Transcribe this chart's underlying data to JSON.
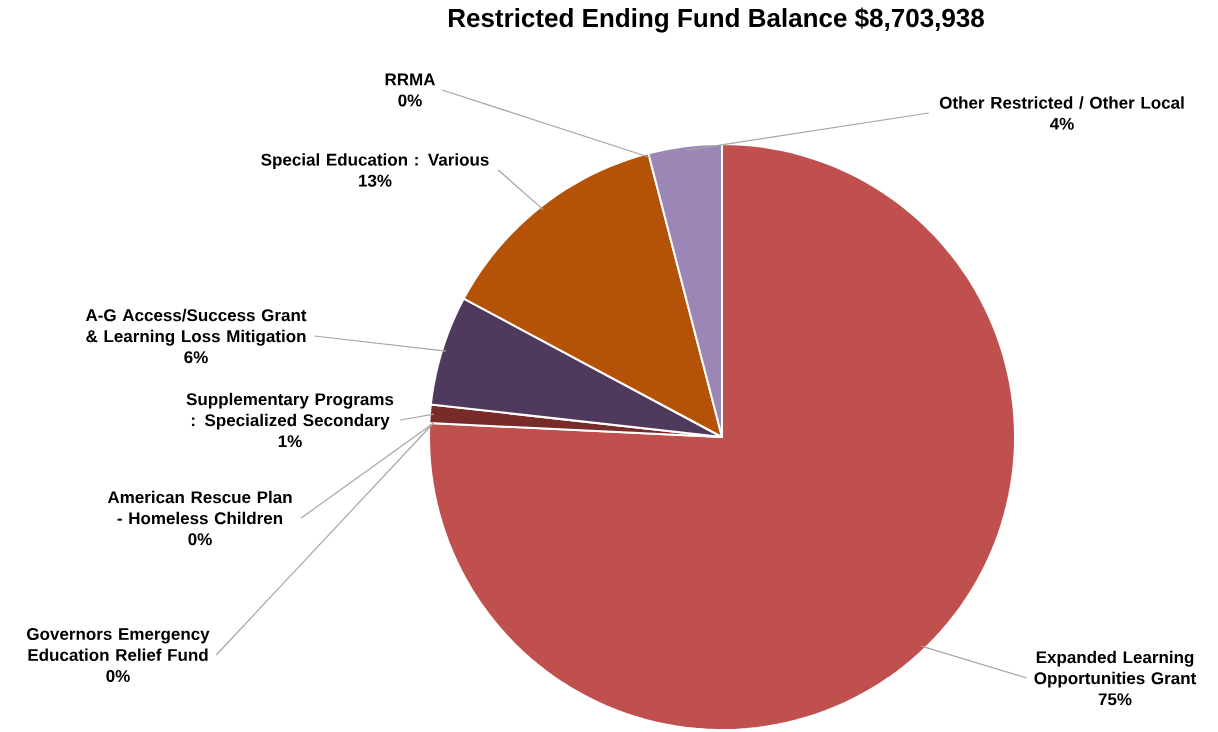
{
  "chart_data": {
    "type": "pie",
    "title": "Restricted Ending Fund Balance $8,703,938",
    "categories": [
      "Expanded Learning Opportunities Grant",
      "Governors Emergency Education Relief Fund",
      "American Rescue Plan - Homeless Children",
      "Supplementary Programs : Specialized Secondary",
      "A-G Access/Success Grant & Learning Loss Mitigation",
      "Special Education : Various",
      "RRMA",
      "Other Restricted / Other Local"
    ],
    "values": [
      75,
      0,
      0,
      1,
      6,
      13,
      0,
      4
    ],
    "value_labels": [
      "75%",
      "0%",
      "0%",
      "1%",
      "6%",
      "13%",
      "0%",
      "4%"
    ],
    "colors": [
      "#c0504d",
      "#8064a2",
      "#e46c0a",
      "#772c2a",
      "#4f3a5e",
      "#b45308",
      "#e07a5f",
      "#9b86b5"
    ]
  }
}
